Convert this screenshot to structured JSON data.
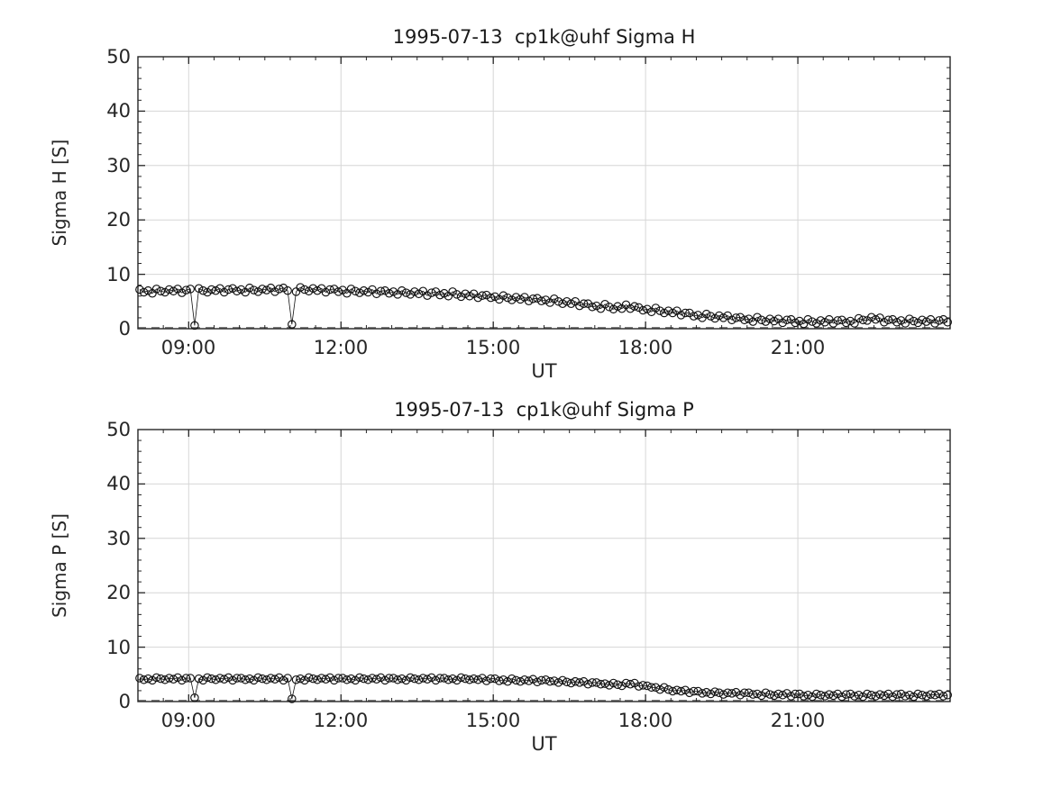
{
  "figure": {
    "background": "#ffffff",
    "text_color": "#262626",
    "axes_color": "#262626",
    "grid_color": "#d6d6d6",
    "series_color": "#111111"
  },
  "chart_data": [
    {
      "type": "scatter",
      "title": "1995-07-13  cp1k@uhf Sigma H",
      "xlabel": "UT",
      "ylabel": "Sigma H [S]",
      "xlim_minutes": [
        480,
        1440
      ],
      "ylim": [
        0,
        50
      ],
      "grid": true,
      "legend": "none",
      "marker": "open-circle",
      "line_style": "thin-solid-connecting",
      "zero_dashed_line": true,
      "x_minor_step_min": 30,
      "y_minor_step": 2,
      "xticks": [
        {
          "minute": 540,
          "label": "09:00"
        },
        {
          "minute": 720,
          "label": "12:00"
        },
        {
          "minute": 900,
          "label": "15:00"
        },
        {
          "minute": 1080,
          "label": "18:00"
        },
        {
          "minute": 1260,
          "label": "21:00"
        }
      ],
      "yticks": [
        {
          "value": 0,
          "label": "0"
        },
        {
          "value": 10,
          "label": "10"
        },
        {
          "value": 20,
          "label": "20"
        },
        {
          "value": 30,
          "label": "30"
        },
        {
          "value": 40,
          "label": "40"
        },
        {
          "value": 50,
          "label": "50"
        }
      ],
      "x_start_min": 482,
      "x_step_min": 5,
      "y": [
        7.2,
        6.7,
        7.0,
        6.5,
        7.3,
        6.9,
        6.7,
        7.2,
        6.9,
        7.3,
        6.6,
        7.1,
        7.3,
        0.6,
        7.4,
        7.0,
        6.7,
        7.2,
        7.0,
        7.4,
        6.7,
        7.2,
        7.4,
        6.9,
        7.2,
        6.7,
        7.5,
        7.1,
        6.8,
        7.3,
        7.1,
        7.5,
        6.8,
        7.3,
        7.5,
        7.0,
        0.8,
        6.8,
        7.6,
        7.2,
        6.9,
        7.4,
        7.0,
        7.4,
        6.7,
        7.2,
        7.3,
        6.8,
        7.1,
        6.5,
        7.3,
        6.9,
        6.6,
        7.0,
        6.7,
        7.2,
        6.4,
        6.9,
        7.0,
        6.5,
        6.8,
        6.3,
        7.0,
        6.6,
        6.3,
        6.8,
        6.4,
        6.9,
        6.1,
        6.6,
        6.8,
        6.2,
        6.5,
        6.0,
        6.8,
        6.3,
        5.9,
        6.4,
        6.0,
        6.4,
        5.7,
        6.1,
        6.2,
        5.7,
        5.9,
        5.4,
        6.1,
        5.7,
        5.3,
        5.8,
        5.4,
        5.8,
        5.1,
        5.5,
        5.6,
        5.1,
        5.3,
        4.8,
        5.5,
        5.0,
        4.6,
        5.0,
        4.6,
        5.0,
        4.2,
        4.6,
        4.6,
        4.0,
        4.2,
        3.7,
        4.5,
        4.0,
        3.6,
        4.1,
        3.7,
        4.4,
        3.7,
        4.1,
        3.9,
        3.4,
        3.6,
        3.1,
        3.8,
        3.3,
        2.9,
        3.3,
        2.9,
        3.3,
        2.5,
        2.9,
        2.9,
        2.3,
        2.5,
        2.0,
        2.7,
        2.3,
        1.9,
        2.4,
        2.0,
        2.4,
        1.6,
        2.0,
        2.1,
        1.6,
        1.8,
        1.3,
        2.1,
        1.6,
        1.3,
        1.8,
        1.4,
        1.8,
        1.1,
        1.6,
        1.7,
        1.1,
        1.4,
        0.9,
        1.7,
        1.3,
        1.0,
        1.5,
        1.2,
        1.7,
        1.0,
        1.5,
        1.6,
        1.1,
        1.4,
        1.0,
        1.9,
        1.6,
        1.5,
        2.1,
        1.7,
        2.0,
        1.2,
        1.6,
        1.7,
        1.2,
        1.5,
        1.0,
        1.8,
        1.4,
        1.1,
        1.6,
        1.3,
        1.7,
        1.0,
        1.5,
        1.7,
        1.2
      ]
    },
    {
      "type": "scatter",
      "title": "1995-07-13  cp1k@uhf Sigma P",
      "xlabel": "UT",
      "ylabel": "Sigma P [S]",
      "xlim_minutes": [
        480,
        1440
      ],
      "ylim": [
        0,
        50
      ],
      "grid": true,
      "legend": "none",
      "marker": "open-circle",
      "line_style": "thin-solid-connecting",
      "zero_dashed_line": true,
      "x_minor_step_min": 30,
      "y_minor_step": 2,
      "xticks": [
        {
          "minute": 540,
          "label": "09:00"
        },
        {
          "minute": 720,
          "label": "12:00"
        },
        {
          "minute": 900,
          "label": "15:00"
        },
        {
          "minute": 1080,
          "label": "18:00"
        },
        {
          "minute": 1260,
          "label": "21:00"
        }
      ],
      "yticks": [
        {
          "value": 0,
          "label": "0"
        },
        {
          "value": 10,
          "label": "10"
        },
        {
          "value": 20,
          "label": "20"
        },
        {
          "value": 30,
          "label": "30"
        },
        {
          "value": 40,
          "label": "40"
        },
        {
          "value": 50,
          "label": "50"
        }
      ],
      "x_start_min": 482,
      "x_step_min": 5,
      "y": [
        4.3,
        4.0,
        4.2,
        3.9,
        4.4,
        4.2,
        4.0,
        4.3,
        4.1,
        4.4,
        3.9,
        4.3,
        4.3,
        0.7,
        4.2,
        3.9,
        4.4,
        4.2,
        4.0,
        4.3,
        4.1,
        4.4,
        3.9,
        4.3,
        4.3,
        4.0,
        4.2,
        3.9,
        4.4,
        4.2,
        4.0,
        4.3,
        4.1,
        4.4,
        3.9,
        4.3,
        0.5,
        4.0,
        4.2,
        3.9,
        4.4,
        4.2,
        4.0,
        4.3,
        4.1,
        4.4,
        3.9,
        4.3,
        4.3,
        4.0,
        4.2,
        3.9,
        4.4,
        4.2,
        4.0,
        4.3,
        4.1,
        4.4,
        3.9,
        4.3,
        4.3,
        4.0,
        4.2,
        3.9,
        4.4,
        4.2,
        4.0,
        4.3,
        4.1,
        4.4,
        3.9,
        4.3,
        4.3,
        4.0,
        4.2,
        3.9,
        4.4,
        4.2,
        4.0,
        4.2,
        4.0,
        4.3,
        3.8,
        4.2,
        4.2,
        3.8,
        4.0,
        3.7,
        4.2,
        3.9,
        3.7,
        4.0,
        3.8,
        4.1,
        3.6,
        3.9,
        4.0,
        3.7,
        3.8,
        3.5,
        3.9,
        3.6,
        3.4,
        3.7,
        3.5,
        3.7,
        3.2,
        3.5,
        3.5,
        3.2,
        3.3,
        3.0,
        3.4,
        3.1,
        2.9,
        3.4,
        3.2,
        3.4,
        2.8,
        3.0,
        2.9,
        2.6,
        2.6,
        2.2,
        2.6,
        2.2,
        1.9,
        2.1,
        1.9,
        2.1,
        1.6,
        1.9,
        1.9,
        1.5,
        1.7,
        1.4,
        1.8,
        1.6,
        1.3,
        1.6,
        1.5,
        1.7,
        1.2,
        1.6,
        1.6,
        1.3,
        1.4,
        1.1,
        1.6,
        1.3,
        1.1,
        1.4,
        1.2,
        1.5,
        1.0,
        1.4,
        1.4,
        1.0,
        1.2,
        0.9,
        1.4,
        1.2,
        1.0,
        1.3,
        1.1,
        1.4,
        0.9,
        1.3,
        1.4,
        1.0,
        1.2,
        0.9,
        1.4,
        1.2,
        1.0,
        1.3,
        1.1,
        1.4,
        0.9,
        1.3,
        1.4,
        1.0,
        1.2,
        0.9,
        1.4,
        1.2,
        1.0,
        1.3,
        1.2,
        1.4,
        1.0,
        1.2
      ]
    }
  ]
}
